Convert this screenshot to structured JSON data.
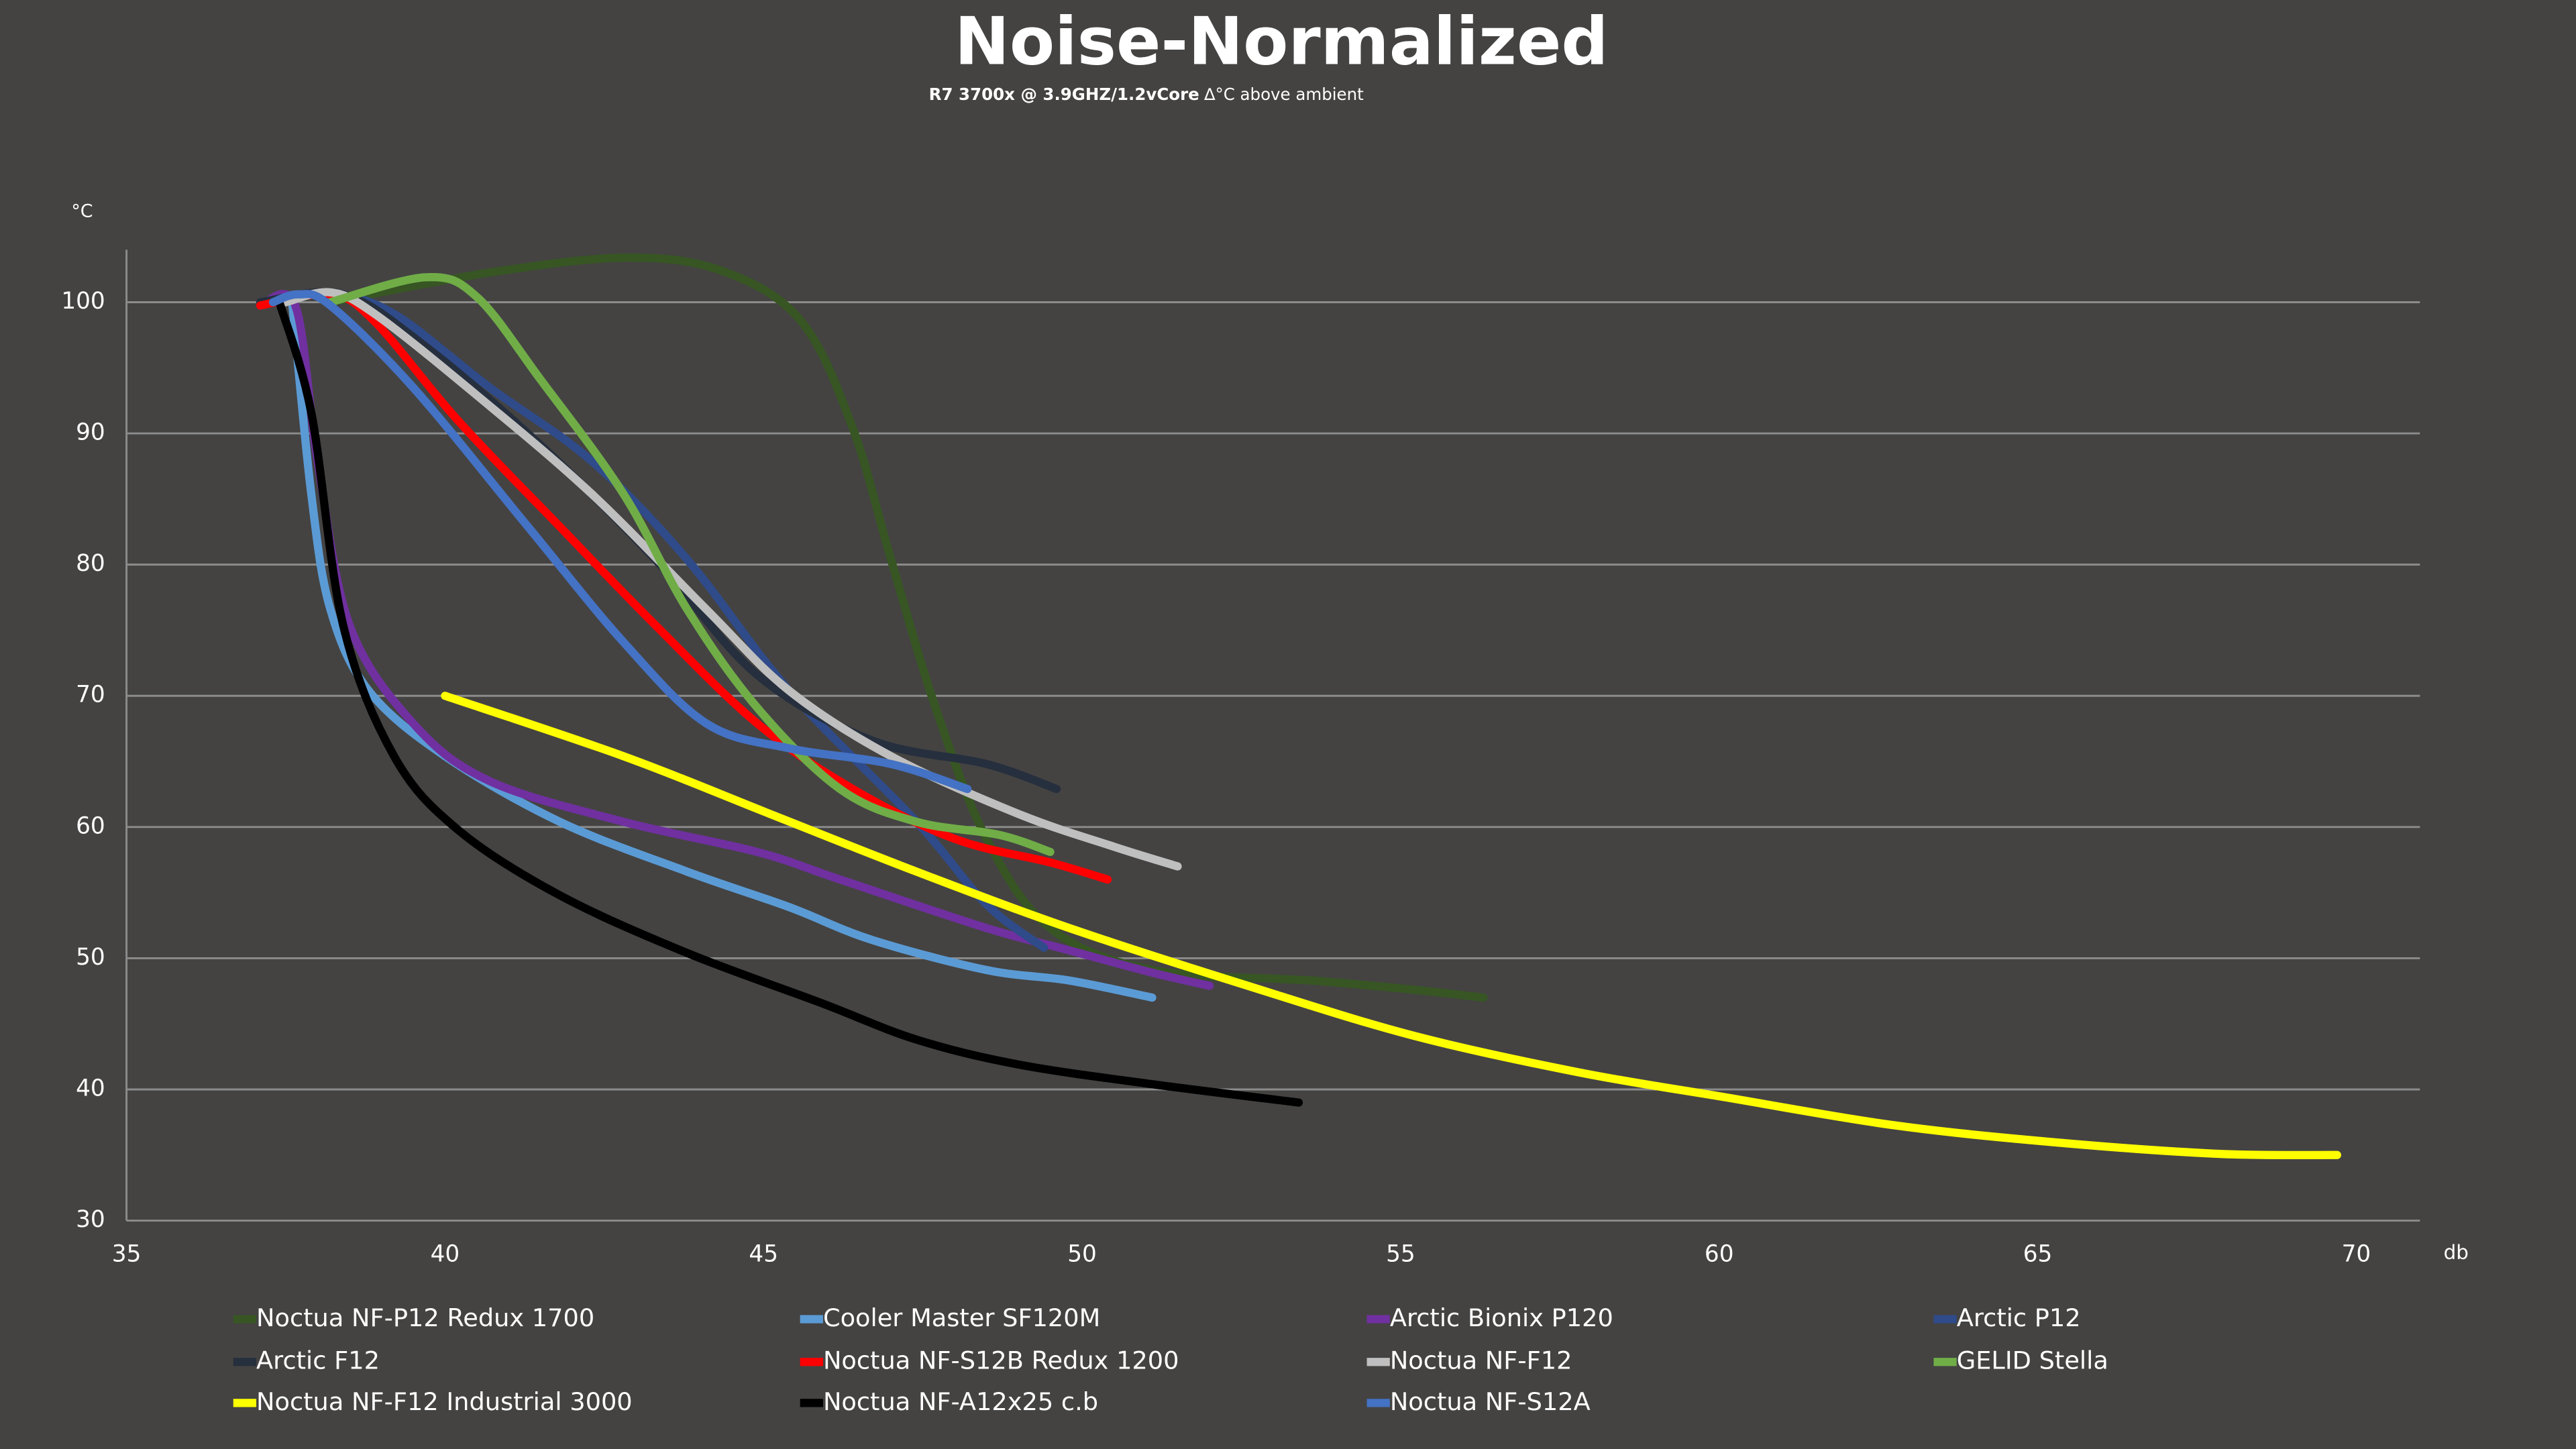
{
  "chart_data": {
    "type": "line",
    "title": "Noise-Normalized",
    "subtitle": "R7 3700x @ 3.9GHZ/1.2vCore",
    "subtitle_note": "∆°C above ambient",
    "y_label": "°C",
    "x_label": "db",
    "xlim": [
      35,
      71
    ],
    "ylim": [
      30,
      104
    ],
    "xticks": [
      35,
      40,
      45,
      50,
      55,
      60,
      65,
      70
    ],
    "yticks": [
      30,
      40,
      50,
      60,
      70,
      80,
      90,
      100
    ],
    "grid": true,
    "series": [
      {
        "name": "Noctua NF-P12 Redux 1700",
        "color": "#375623",
        "x": [
          38.2,
          40.75,
          42.9,
          44.4,
          45.6,
          46.4,
          47.0,
          47.7,
          48.5,
          49.5,
          51.1,
          53.6,
          55.2,
          56.3
        ],
        "values": [
          100,
          102.3,
          103.4,
          102.3,
          98.5,
          90.4,
          80.4,
          69.1,
          59.1,
          52.3,
          49.1,
          48.3,
          47.6,
          47
        ]
      },
      {
        "name": "Cooler Master SF120M",
        "color": "#5b9bd5",
        "x": [
          37.6,
          37.9,
          38.2,
          38.8,
          40.0,
          41.8,
          43.8,
          45.4,
          46.7,
          48.5,
          49.8,
          51.1
        ],
        "values": [
          100,
          85.4,
          76.6,
          70.4,
          65.4,
          60.4,
          56.6,
          53.9,
          51.4,
          49.1,
          48.3,
          47
        ]
      },
      {
        "name": "Arctic Bionix P120",
        "color": "#7030a0",
        "x": [
          37.1,
          37.65,
          38.0,
          38.5,
          39.5,
          40.7,
          42.8,
          44.9,
          46.2,
          48.5,
          49.8,
          51.1,
          52.0
        ],
        "values": [
          99.75,
          99.75,
          87.9,
          75.4,
          67.9,
          63.5,
          60.4,
          58.1,
          56,
          52.3,
          50.6,
          48.9,
          47.9
        ]
      },
      {
        "name": "Arctic P12",
        "color": "#2f4b8a",
        "x": [
          37.1,
          38.2,
          39.2,
          40.7,
          42.3,
          43.8,
          45.4,
          47.4,
          48.5,
          49.4
        ],
        "values": [
          100,
          100.6,
          99.1,
          93.5,
          87.9,
          80.4,
          70.4,
          60.4,
          54.1,
          50.8
        ]
      },
      {
        "name": "Arctic F12",
        "color": "#262f3d",
        "x": [
          37.1,
          38.4,
          39.7,
          41.5,
          43.3,
          44.9,
          46.7,
          48.5,
          49.6
        ],
        "values": [
          100,
          100.6,
          96.6,
          89.1,
          80.4,
          71.6,
          66.6,
          64.8,
          62.9
        ]
      },
      {
        "name": "Noctua NF-S12B Redux 1200",
        "color": "#ff0000",
        "x": [
          37.1,
          38.2,
          38.9,
          40.2,
          41.8,
          43.3,
          44.9,
          46.4,
          48.0,
          49.5,
          50.4
        ],
        "values": [
          99.75,
          100.6,
          98.5,
          91,
          82.9,
          75.4,
          67.9,
          62.9,
          59.1,
          57.3,
          56
        ]
      },
      {
        "name": "Noctua NF-F12",
        "color": "#bfbfbf",
        "x": [
          37.5,
          38.2,
          38.9,
          40.5,
          42.3,
          44.1,
          45.4,
          47.0,
          49.0,
          50.5,
          51.5
        ],
        "values": [
          100,
          100.75,
          99.1,
          92.9,
          85.4,
          76.6,
          70.4,
          65.4,
          61,
          58.5,
          57
        ]
      },
      {
        "name": "GELID Stella",
        "color": "#70ad47",
        "x": [
          38.2,
          39.7,
          40.5,
          41.5,
          42.8,
          43.8,
          44.9,
          46.2,
          47.4,
          48.7,
          49.5
        ],
        "values": [
          100,
          101.9,
          100.4,
          94.1,
          85.4,
          76.6,
          69.1,
          62.9,
          60.4,
          59.4,
          58.1
        ]
      },
      {
        "name": "Noctua NF-F12 Industrial 3000",
        "color": "#ffff00",
        "x": [
          40,
          42.8,
          45.1,
          47.4,
          49.8,
          52.6,
          55.2,
          57.8,
          60.1,
          62.7,
          65.2,
          67.8,
          69.7
        ],
        "values": [
          70,
          65.4,
          61,
          56.6,
          52.3,
          47.9,
          44.1,
          41.3,
          39.4,
          37.3,
          36,
          35.1,
          35
        ]
      },
      {
        "name": "Noctua NF-A12x25 c.b",
        "color": "#000000",
        "x": [
          37.4,
          37.9,
          38.4,
          39.2,
          40.2,
          41.8,
          43.8,
          45.9,
          47.4,
          49.0,
          51.1,
          53.4
        ],
        "values": [
          100,
          91.6,
          75.4,
          65.4,
          59.8,
          54.8,
          50.4,
          46.6,
          43.8,
          41.9,
          40.4,
          39
        ]
      },
      {
        "name": "Noctua NF-S12A",
        "color": "#4472c4",
        "x": [
          37.3,
          37.7,
          38.2,
          39.5,
          41.3,
          42.8,
          44.1,
          45.4,
          47.0,
          48.2
        ],
        "values": [
          100,
          100.6,
          99.75,
          93.5,
          82.9,
          74.1,
          67.9,
          66,
          64.8,
          62.9
        ]
      }
    ]
  }
}
